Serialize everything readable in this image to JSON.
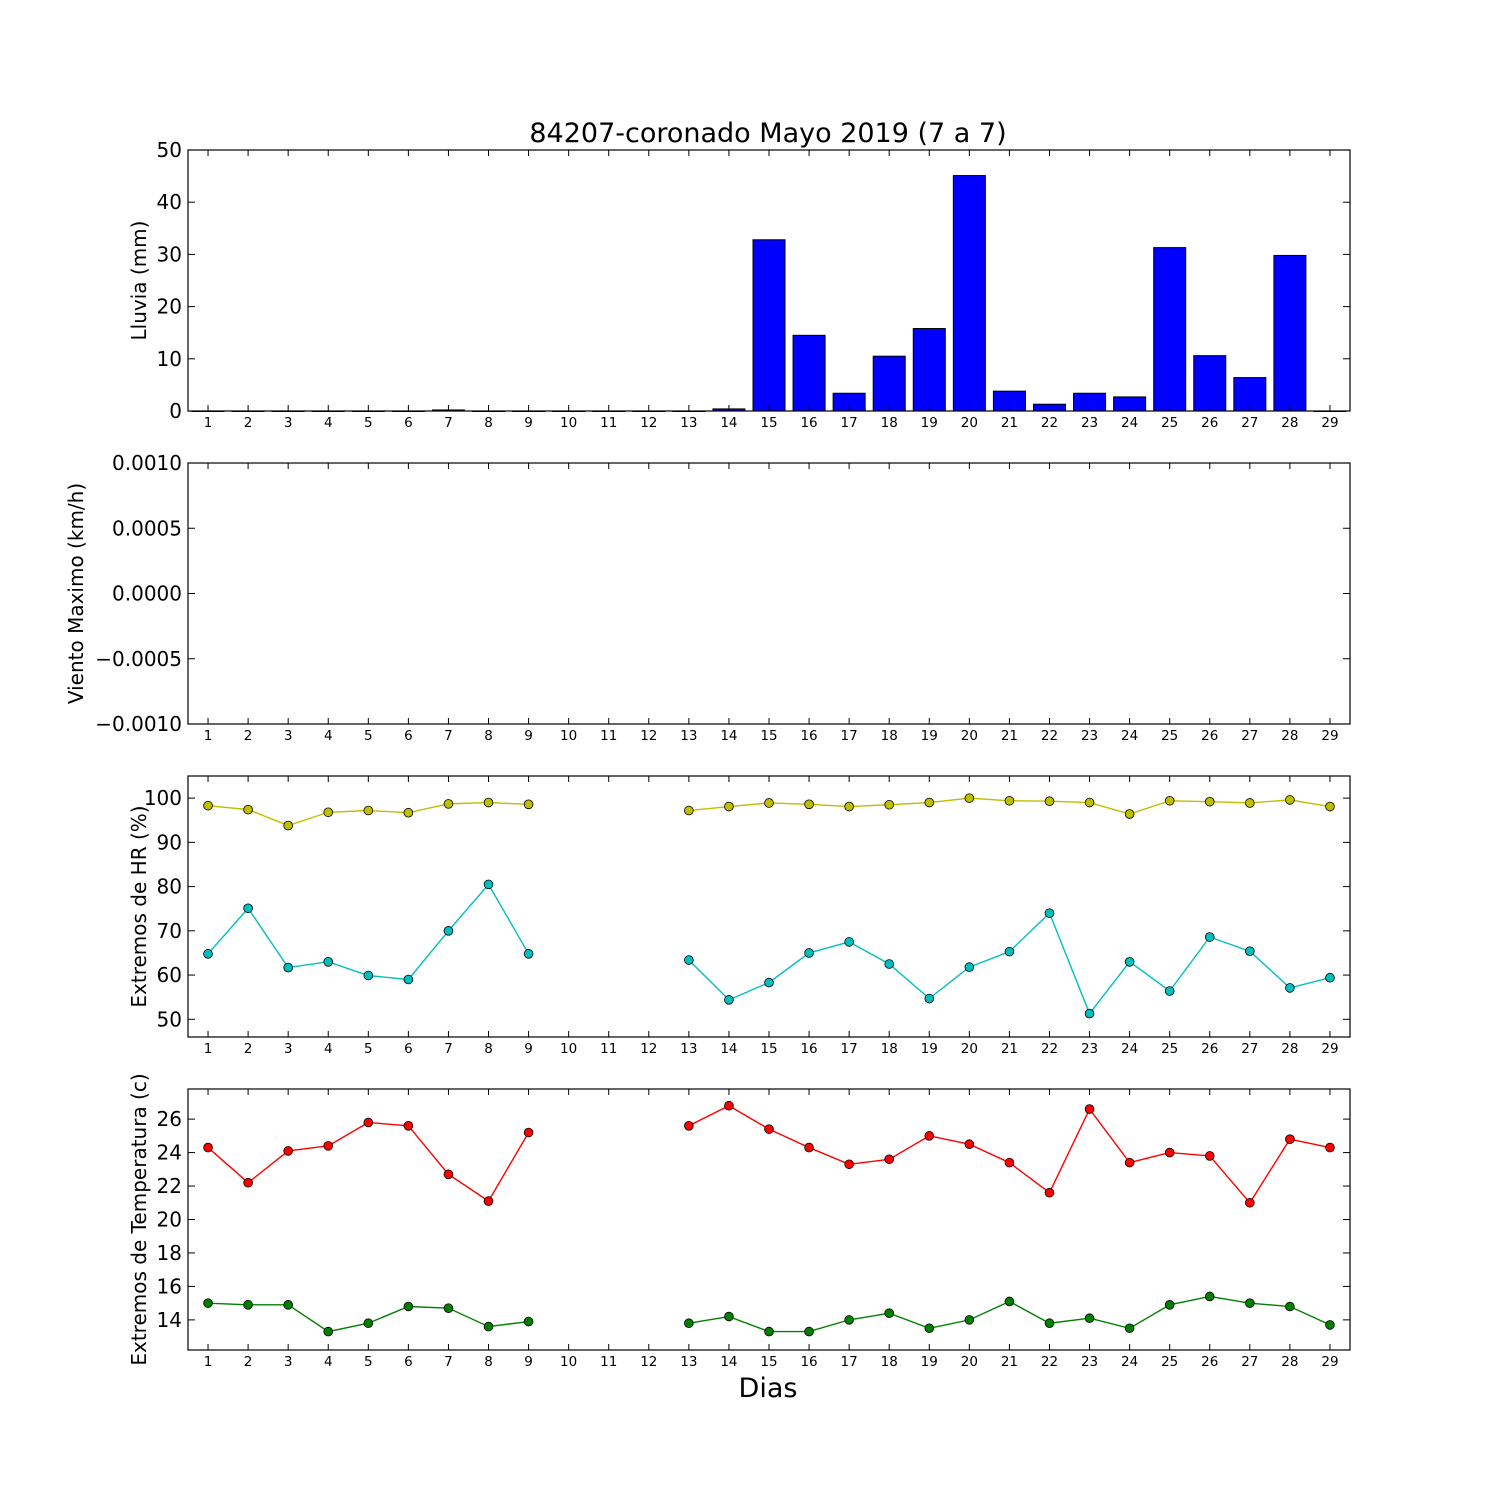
{
  "title": "84207-coronado Mayo 2019  (7 a 7)",
  "xlabel": "Dias",
  "chart_data": [
    {
      "type": "bar",
      "ylabel": "Lluvia (mm)",
      "xlim": [
        0.5,
        29.5
      ],
      "ylim": [
        0,
        50
      ],
      "yticks": [
        0,
        10,
        20,
        30,
        40,
        50
      ],
      "ytick_labels": [
        "0",
        "10",
        "20",
        "30",
        "40",
        "50"
      ],
      "categories": [
        1,
        2,
        3,
        4,
        5,
        6,
        7,
        8,
        9,
        10,
        11,
        12,
        13,
        14,
        15,
        16,
        17,
        18,
        19,
        20,
        21,
        22,
        23,
        24,
        25,
        26,
        27,
        28,
        29
      ],
      "series": [
        {
          "color": "#0000ff",
          "values": [
            0,
            0,
            0,
            0,
            0,
            0,
            0.2,
            0,
            0,
            0,
            0,
            0,
            0,
            0.4,
            32.8,
            14.5,
            3.4,
            10.5,
            15.8,
            45.1,
            3.8,
            1.3,
            3.4,
            2.7,
            31.3,
            10.6,
            6.4,
            29.8,
            0
          ]
        }
      ]
    },
    {
      "type": "line",
      "ylabel": "Viento Maximo (km/h)",
      "xlim": [
        0.5,
        29.5
      ],
      "ylim": [
        -0.001,
        0.001
      ],
      "yticks": [
        -0.001,
        -0.0005,
        0,
        0.0005,
        0.001
      ],
      "ytick_labels": [
        "−0.0010",
        "−0.0005",
        "0.0000",
        "0.0005",
        "0.0010"
      ],
      "x": [
        1,
        2,
        3,
        4,
        5,
        6,
        7,
        8,
        9,
        10,
        11,
        12,
        13,
        14,
        15,
        16,
        17,
        18,
        19,
        20,
        21,
        22,
        23,
        24,
        25,
        26,
        27,
        28,
        29
      ],
      "series": []
    },
    {
      "type": "line",
      "ylabel": "Extremos de HR (%)",
      "xlim": [
        0.5,
        29.5
      ],
      "ylim": [
        46,
        105
      ],
      "yticks": [
        50,
        60,
        70,
        80,
        90,
        100
      ],
      "ytick_labels": [
        "50",
        "60",
        "70",
        "80",
        "90",
        "100"
      ],
      "x": [
        1,
        2,
        3,
        4,
        5,
        6,
        7,
        8,
        9,
        10,
        11,
        12,
        13,
        14,
        15,
        16,
        17,
        18,
        19,
        20,
        21,
        22,
        23,
        24,
        25,
        26,
        27,
        28,
        29
      ],
      "series": [
        {
          "color": "#bfbf00",
          "values": [
            98.3,
            97.4,
            93.8,
            96.8,
            97.2,
            96.7,
            98.7,
            99.0,
            98.6,
            null,
            null,
            null,
            97.2,
            98.1,
            98.9,
            98.6,
            98.1,
            98.5,
            99.0,
            100.0,
            99.4,
            99.3,
            99.0,
            96.4,
            99.4,
            99.2,
            98.9,
            99.6,
            98.1
          ]
        },
        {
          "color": "#00bfbf",
          "values": [
            64.8,
            75.1,
            61.7,
            63.0,
            59.9,
            59.0,
            70.0,
            80.5,
            64.8,
            null,
            null,
            null,
            63.4,
            54.4,
            58.3,
            65.0,
            67.5,
            62.5,
            54.7,
            61.8,
            65.3,
            74.0,
            51.3,
            63.0,
            56.4,
            68.6,
            65.4,
            57.1,
            59.4
          ]
        }
      ]
    },
    {
      "type": "line",
      "ylabel": "Extremos de Temperatura (c)",
      "xlim": [
        0.5,
        29.5
      ],
      "ylim": [
        12.2,
        27.8
      ],
      "yticks": [
        14,
        16,
        18,
        20,
        22,
        24,
        26
      ],
      "ytick_labels": [
        "14",
        "16",
        "18",
        "20",
        "22",
        "24",
        "26"
      ],
      "x": [
        1,
        2,
        3,
        4,
        5,
        6,
        7,
        8,
        9,
        10,
        11,
        12,
        13,
        14,
        15,
        16,
        17,
        18,
        19,
        20,
        21,
        22,
        23,
        24,
        25,
        26,
        27,
        28,
        29
      ],
      "series": [
        {
          "color": "#ff0000",
          "values": [
            24.3,
            22.2,
            24.1,
            24.4,
            25.8,
            25.6,
            22.7,
            21.1,
            25.2,
            null,
            null,
            null,
            25.6,
            26.8,
            25.4,
            24.3,
            23.3,
            23.6,
            25.0,
            24.5,
            23.4,
            21.6,
            26.6,
            23.4,
            24.0,
            23.8,
            21.0,
            24.8,
            24.3
          ]
        },
        {
          "color": "#008000",
          "values": [
            15.0,
            14.9,
            14.9,
            13.3,
            13.8,
            14.8,
            14.7,
            13.6,
            13.9,
            null,
            null,
            null,
            13.8,
            14.2,
            13.3,
            13.3,
            14.0,
            14.4,
            13.5,
            14.0,
            15.1,
            13.8,
            14.1,
            13.5,
            14.9,
            15.4,
            15.0,
            14.8,
            13.7
          ]
        }
      ]
    }
  ]
}
